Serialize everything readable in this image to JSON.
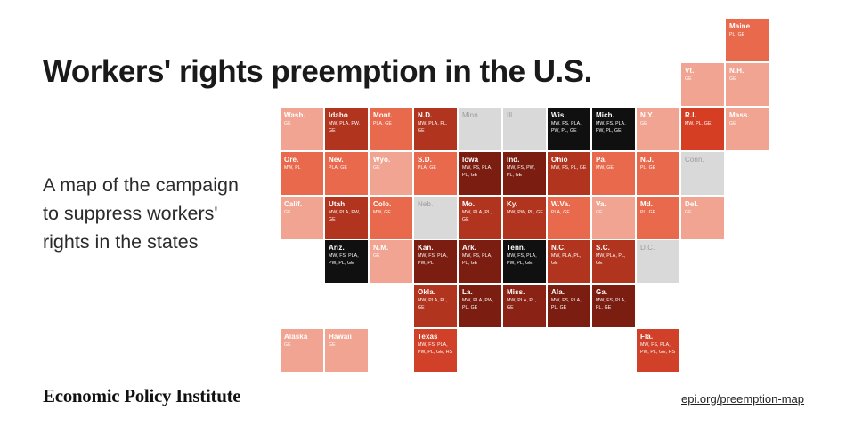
{
  "header": {
    "title": "Workers' rights preemption in the U.S.",
    "subtitle": "A map of the campaign to suppress workers' rights in the states"
  },
  "footer": {
    "brand": "Economic Policy Institute",
    "link": "epi.org/preemption-map"
  },
  "map": {
    "type": "us-tile-grid-cartogram",
    "colors": {
      "no_preemption": "#d9d9d9",
      "level1": "#f1a491",
      "level2": "#e8694c",
      "level3": "#d63e24",
      "level4": "#b1341f",
      "level5": "#7b1d10",
      "level6": "#101010",
      "special": "#d14029",
      "tile_text": "#ffffff",
      "gray_text": "#9b9b9b"
    },
    "tiles": [
      {
        "abbr": "Maine",
        "codes": "PL, GE",
        "row": 0,
        "col": 10,
        "color": "#e8694c"
      },
      {
        "abbr": "Vt.",
        "codes": "GE",
        "row": 1,
        "col": 9,
        "color": "#f1a491"
      },
      {
        "abbr": "N.H.",
        "codes": "GE",
        "row": 1,
        "col": 10,
        "color": "#f1a491"
      },
      {
        "abbr": "Wash.",
        "codes": "GE",
        "row": 2,
        "col": 0,
        "color": "#f1a491"
      },
      {
        "abbr": "Idaho",
        "codes": "MW, PLA, PW, GE",
        "row": 2,
        "col": 1,
        "color": "#b1341f"
      },
      {
        "abbr": "Mont.",
        "codes": "PLA, GE",
        "row": 2,
        "col": 2,
        "color": "#e8694c"
      },
      {
        "abbr": "N.D.",
        "codes": "MW, PLA, PL, GE",
        "row": 2,
        "col": 3,
        "color": "#b1341f"
      },
      {
        "abbr": "Minn.",
        "codes": "",
        "row": 2,
        "col": 4,
        "color": "#d9d9d9"
      },
      {
        "abbr": "Ill.",
        "codes": "",
        "row": 2,
        "col": 5,
        "color": "#d9d9d9"
      },
      {
        "abbr": "Wis.",
        "codes": "MW, FS, PLA, PW, PL, GE",
        "row": 2,
        "col": 6,
        "color": "#101010"
      },
      {
        "abbr": "Mich.",
        "codes": "MW, FS, PLA, PW, PL, GE",
        "row": 2,
        "col": 7,
        "color": "#101010"
      },
      {
        "abbr": "N.Y.",
        "codes": "GE",
        "row": 2,
        "col": 8,
        "color": "#f1a491"
      },
      {
        "abbr": "R.I.",
        "codes": "MW, PL, GE",
        "row": 2,
        "col": 9,
        "color": "#d63e24"
      },
      {
        "abbr": "Mass.",
        "codes": "GE",
        "row": 2,
        "col": 10,
        "color": "#f1a491"
      },
      {
        "abbr": "Ore.",
        "codes": "MW, PL",
        "row": 3,
        "col": 0,
        "color": "#e8694c"
      },
      {
        "abbr": "Nev.",
        "codes": "PLA, GE",
        "row": 3,
        "col": 1,
        "color": "#e8694c"
      },
      {
        "abbr": "Wyo.",
        "codes": "GE",
        "row": 3,
        "col": 2,
        "color": "#f1a491"
      },
      {
        "abbr": "S.D.",
        "codes": "PLA, GE",
        "row": 3,
        "col": 3,
        "color": "#e8694c"
      },
      {
        "abbr": "Iowa",
        "codes": "MW, FS, PLA, PL, GE",
        "row": 3,
        "col": 4,
        "color": "#7b1d10"
      },
      {
        "abbr": "Ind.",
        "codes": "MW, FS, PW, PL, GE",
        "row": 3,
        "col": 5,
        "color": "#7b1d10"
      },
      {
        "abbr": "Ohio",
        "codes": "MW, FS, PL, GE",
        "row": 3,
        "col": 6,
        "color": "#b1341f"
      },
      {
        "abbr": "Pa.",
        "codes": "MW, GE",
        "row": 3,
        "col": 7,
        "color": "#e8694c"
      },
      {
        "abbr": "N.J.",
        "codes": "PL, GE",
        "row": 3,
        "col": 8,
        "color": "#e8694c"
      },
      {
        "abbr": "Conn.",
        "codes": "",
        "row": 3,
        "col": 9,
        "color": "#d9d9d9"
      },
      {
        "abbr": "Calif.",
        "codes": "GE",
        "row": 4,
        "col": 0,
        "color": "#f1a491"
      },
      {
        "abbr": "Utah",
        "codes": "MW, PLA, PW, GE",
        "row": 4,
        "col": 1,
        "color": "#b1341f"
      },
      {
        "abbr": "Colo.",
        "codes": "MW, GE",
        "row": 4,
        "col": 2,
        "color": "#e8694c"
      },
      {
        "abbr": "Neb.",
        "codes": "",
        "row": 4,
        "col": 3,
        "color": "#d9d9d9"
      },
      {
        "abbr": "Mo.",
        "codes": "MW, PLA, PL, GE",
        "row": 4,
        "col": 4,
        "color": "#b1341f"
      },
      {
        "abbr": "Ky.",
        "codes": "MW, PW, PL, GE",
        "row": 4,
        "col": 5,
        "color": "#b1341f"
      },
      {
        "abbr": "W.Va.",
        "codes": "PLA, GE",
        "row": 4,
        "col": 6,
        "color": "#e8694c"
      },
      {
        "abbr": "Va.",
        "codes": "GE",
        "row": 4,
        "col": 7,
        "color": "#f1a491"
      },
      {
        "abbr": "Md.",
        "codes": "PL, GE",
        "row": 4,
        "col": 8,
        "color": "#e8694c"
      },
      {
        "abbr": "Del.",
        "codes": "GE",
        "row": 4,
        "col": 9,
        "color": "#f1a491"
      },
      {
        "abbr": "Ariz.",
        "codes": "MW, FS, PLA, PW, PL, GE",
        "row": 5,
        "col": 1,
        "color": "#101010"
      },
      {
        "abbr": "N.M.",
        "codes": "GE",
        "row": 5,
        "col": 2,
        "color": "#f1a491"
      },
      {
        "abbr": "Kan.",
        "codes": "MW, FS, PLA, PW, PL",
        "row": 5,
        "col": 3,
        "color": "#7b1d10"
      },
      {
        "abbr": "Ark.",
        "codes": "MW, FS, PLA, PL, GE",
        "row": 5,
        "col": 4,
        "color": "#7b1d10"
      },
      {
        "abbr": "Tenn.",
        "codes": "MW, FS, PLA, PW, PL, GE",
        "row": 5,
        "col": 5,
        "color": "#101010"
      },
      {
        "abbr": "N.C.",
        "codes": "MW, PLA, PL, GE",
        "row": 5,
        "col": 6,
        "color": "#b1341f"
      },
      {
        "abbr": "S.C.",
        "codes": "MW, PLA, PL, GE",
        "row": 5,
        "col": 7,
        "color": "#b1341f"
      },
      {
        "abbr": "D.C.",
        "codes": "",
        "row": 5,
        "col": 8,
        "color": "#d9d9d9"
      },
      {
        "abbr": "Okla.",
        "codes": "MW, PLA, PL, GE",
        "row": 6,
        "col": 3,
        "color": "#b1341f"
      },
      {
        "abbr": "La.",
        "codes": "MW, PLA, PW, PL, GE",
        "row": 6,
        "col": 4,
        "color": "#7b1d10"
      },
      {
        "abbr": "Miss.",
        "codes": "MW, PLA, PL, GE",
        "row": 6,
        "col": 5,
        "color": "#8a2315"
      },
      {
        "abbr": "Ala.",
        "codes": "MW, FS, PLA, PL, GE",
        "row": 6,
        "col": 6,
        "color": "#7b1d10"
      },
      {
        "abbr": "Ga.",
        "codes": "MW, FS, PLA, PL, GE",
        "row": 6,
        "col": 7,
        "color": "#7b1d10"
      },
      {
        "abbr": "Alaska",
        "codes": "GE",
        "row": 7,
        "col": 0,
        "color": "#f1a491"
      },
      {
        "abbr": "Hawaii",
        "codes": "GE",
        "row": 7,
        "col": 1,
        "color": "#f1a491"
      },
      {
        "abbr": "Texas",
        "codes": "MW, FS, PLA, PW, PL, GE, HS",
        "row": 7,
        "col": 3,
        "color": "#d14029"
      },
      {
        "abbr": "Fla.",
        "codes": "MW, FS, PLA, PW, PL, GE, HS",
        "row": 7,
        "col": 8,
        "color": "#d14029"
      }
    ]
  }
}
